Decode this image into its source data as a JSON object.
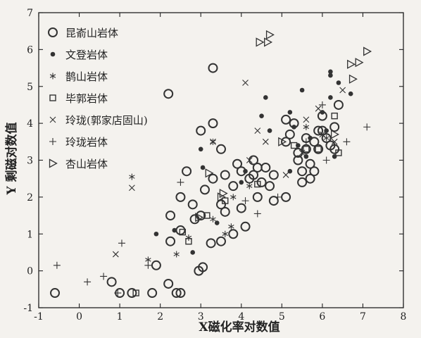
{
  "chart_data": {
    "type": "scatter",
    "xlabel": "X磁化率对数值",
    "ylabel": "Y 剩磁对数值",
    "xlim": [
      -1,
      8
    ],
    "ylim": [
      -1,
      7
    ],
    "xticks": [
      -1,
      0,
      1,
      2,
      3,
      4,
      5,
      6,
      7,
      8
    ],
    "yticks": [
      -1,
      0,
      1,
      2,
      3,
      4,
      5,
      6,
      7
    ],
    "grid": false,
    "legend_position": "top-left",
    "series": [
      {
        "name": "昆嵛山岩体",
        "marker": "circle",
        "points": [
          [
            -0.6,
            -0.6
          ],
          [
            0.8,
            -0.3
          ],
          [
            1.0,
            -0.6
          ],
          [
            1.3,
            -0.6
          ],
          [
            1.8,
            -0.6
          ],
          [
            2.2,
            -0.35
          ],
          [
            2.4,
            -0.6
          ],
          [
            2.5,
            -0.6
          ],
          [
            1.9,
            0.15
          ],
          [
            2.25,
            0.8
          ],
          [
            2.25,
            1.5
          ],
          [
            2.5,
            2.0
          ],
          [
            2.65,
            2.7
          ],
          [
            2.85,
            1.4
          ],
          [
            3.0,
            1.5
          ],
          [
            3.05,
            0.1
          ],
          [
            2.95,
            0.0
          ],
          [
            3.25,
            0.75
          ],
          [
            3.5,
            0.8
          ],
          [
            2.5,
            1.1
          ],
          [
            2.8,
            1.8
          ],
          [
            3.1,
            2.2
          ],
          [
            3.3,
            2.5
          ],
          [
            3.6,
            2.6
          ],
          [
            3.5,
            1.8
          ],
          [
            3.6,
            1.6
          ],
          [
            3.8,
            2.3
          ],
          [
            3.9,
            2.9
          ],
          [
            3.8,
            1.0
          ],
          [
            4.0,
            1.7
          ],
          [
            4.1,
            1.2
          ],
          [
            4.2,
            2.5
          ],
          [
            4.3,
            2.6
          ],
          [
            4.4,
            2.0
          ],
          [
            4.5,
            2.4
          ],
          [
            4.6,
            2.8
          ],
          [
            4.7,
            2.3
          ],
          [
            4.8,
            2.6
          ],
          [
            4.4,
            2.8
          ],
          [
            4.3,
            3.0
          ],
          [
            4.0,
            2.7
          ],
          [
            4.8,
            1.9
          ],
          [
            5.1,
            2.0
          ],
          [
            5.1,
            3.5
          ],
          [
            5.1,
            4.1
          ],
          [
            5.2,
            3.7
          ],
          [
            5.3,
            4.0
          ],
          [
            5.4,
            3.2
          ],
          [
            5.4,
            3.0
          ],
          [
            5.5,
            2.7
          ],
          [
            5.5,
            2.4
          ],
          [
            5.6,
            3.3
          ],
          [
            5.7,
            2.5
          ],
          [
            5.7,
            2.9
          ],
          [
            5.8,
            3.5
          ],
          [
            5.9,
            3.3
          ],
          [
            6.0,
            3.8
          ],
          [
            6.0,
            4.2
          ],
          [
            6.1,
            3.6
          ],
          [
            6.2,
            3.4
          ],
          [
            6.3,
            3.9
          ],
          [
            6.4,
            4.5
          ],
          [
            5.8,
            2.7
          ],
          [
            6.3,
            3.3
          ],
          [
            5.6,
            3.6
          ],
          [
            5.9,
            3.8
          ],
          [
            2.2,
            4.8
          ],
          [
            3.3,
            5.5
          ],
          [
            3.0,
            3.8
          ],
          [
            3.5,
            3.3
          ],
          [
            3.3,
            4.0
          ]
        ]
      },
      {
        "name": "文登岩体",
        "marker": "dot",
        "points": [
          [
            1.9,
            1.0
          ],
          [
            2.35,
            1.1
          ],
          [
            2.8,
            0.5
          ],
          [
            3.05,
            2.8
          ],
          [
            3.0,
            3.3
          ],
          [
            3.4,
            1.3
          ],
          [
            4.0,
            2.4
          ],
          [
            4.1,
            2.7
          ],
          [
            4.5,
            4.2
          ],
          [
            4.6,
            4.7
          ],
          [
            4.7,
            3.8
          ],
          [
            5.2,
            2.7
          ],
          [
            5.4,
            3.4
          ],
          [
            5.6,
            3.1
          ],
          [
            5.7,
            3.6
          ],
          [
            6.0,
            4.3
          ],
          [
            6.1,
            3.8
          ],
          [
            6.3,
            3.1
          ],
          [
            6.2,
            4.7
          ],
          [
            6.2,
            5.3
          ],
          [
            6.2,
            5.4
          ],
          [
            6.7,
            4.8
          ],
          [
            5.3,
            3.9
          ],
          [
            5.2,
            4.3
          ],
          [
            5.5,
            4.9
          ],
          [
            6.4,
            5.1
          ]
        ]
      },
      {
        "name": "鹊山岩体",
        "marker": "star",
        "points": [
          [
            1.3,
            2.55
          ],
          [
            1.7,
            0.3
          ],
          [
            2.4,
            0.45
          ],
          [
            2.7,
            0.9
          ],
          [
            3.3,
            1.4
          ],
          [
            3.3,
            3.5
          ],
          [
            3.6,
            1.0
          ],
          [
            3.75,
            1.2
          ],
          [
            3.8,
            2.0
          ],
          [
            4.2,
            2.3
          ],
          [
            5.6,
            3.9
          ],
          [
            6.1,
            3.6
          ]
        ]
      },
      {
        "name": "毕郭岩体",
        "marker": "square",
        "points": [
          [
            1.4,
            -0.6
          ],
          [
            2.55,
            1.05
          ],
          [
            2.7,
            0.8
          ],
          [
            3.15,
            1.5
          ],
          [
            3.6,
            1.9
          ],
          [
            4.4,
            2.35
          ],
          [
            5.3,
            3.4
          ],
          [
            5.6,
            3.3
          ],
          [
            5.9,
            3.3
          ],
          [
            6.3,
            4.2
          ],
          [
            6.4,
            3.2
          ]
        ]
      },
      {
        "name": "玲珑(郭家店固山)",
        "marker": "x",
        "points": [
          [
            0.9,
            0.45
          ],
          [
            1.3,
            2.25
          ],
          [
            3.3,
            3.5
          ],
          [
            4.1,
            5.1
          ],
          [
            4.2,
            3.0
          ],
          [
            4.4,
            3.8
          ],
          [
            4.6,
            3.5
          ],
          [
            5.1,
            2.6
          ],
          [
            5.5,
            3.2
          ],
          [
            5.6,
            4.1
          ],
          [
            5.9,
            4.4
          ],
          [
            6.0,
            3.7
          ],
          [
            6.5,
            4.9
          ],
          [
            6.3,
            3.5
          ]
        ]
      },
      {
        "name": "玲珑岩体",
        "marker": "plus",
        "points": [
          [
            -0.55,
            0.15
          ],
          [
            0.2,
            -0.3
          ],
          [
            0.6,
            -0.15
          ],
          [
            0.95,
            -0.6
          ],
          [
            1.05,
            0.75
          ],
          [
            1.7,
            0.15
          ],
          [
            2.5,
            2.4
          ],
          [
            4.1,
            1.9
          ],
          [
            4.4,
            1.55
          ],
          [
            4.9,
            2.0
          ],
          [
            5.6,
            3.5
          ],
          [
            6.1,
            3.0
          ],
          [
            6.6,
            3.5
          ],
          [
            7.1,
            3.9
          ],
          [
            6.0,
            4.5
          ]
        ]
      },
      {
        "name": "杏山岩体",
        "marker": "triangle-right",
        "points": [
          [
            2.95,
            1.45
          ],
          [
            3.2,
            2.65
          ],
          [
            3.5,
            2.0
          ],
          [
            3.55,
            2.1
          ],
          [
            4.45,
            6.2
          ],
          [
            4.65,
            6.2
          ],
          [
            4.7,
            6.4
          ],
          [
            5.0,
            3.5
          ],
          [
            6.3,
            3.7
          ],
          [
            6.7,
            5.6
          ],
          [
            6.9,
            5.65
          ],
          [
            6.75,
            5.2
          ],
          [
            7.1,
            5.95
          ]
        ]
      }
    ]
  }
}
